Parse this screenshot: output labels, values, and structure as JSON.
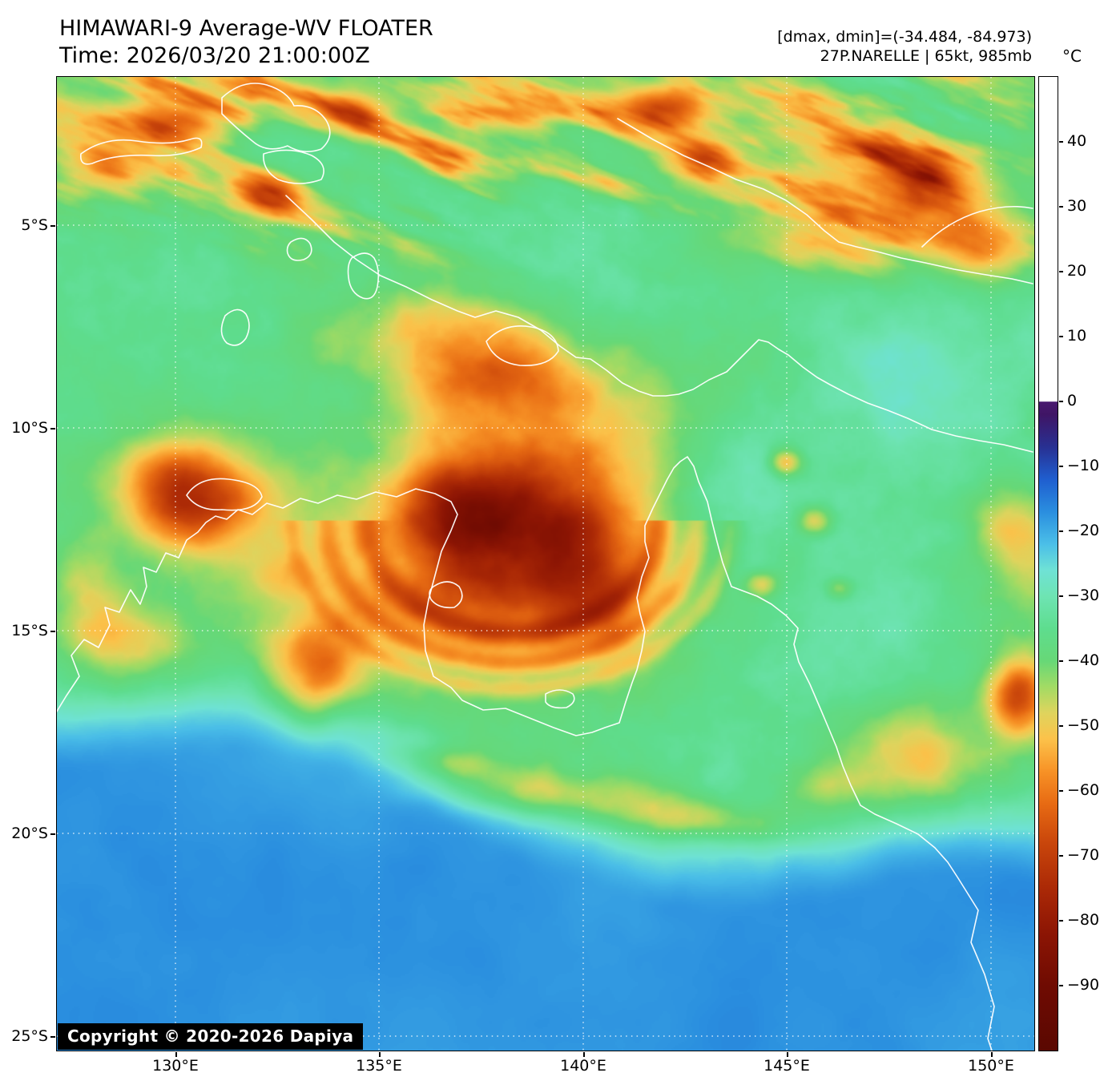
{
  "header": {
    "title": "HIMAWARI-9 Average-WV FLOATER",
    "time_label": "Time: 2026/03/20 21:00:00Z",
    "range_annotation": "[dmax, dmin]=(-34.484, -84.973)",
    "storm_annotation": "27P.NARELLE | 65kt, 985mb"
  },
  "map": {
    "copyright": "Copyright © 2020-2026 Dapiya",
    "lat_ticks": [
      "5°S",
      "10°S",
      "15°S",
      "20°S",
      "25°S"
    ],
    "lon_ticks": [
      "130°E",
      "135°E",
      "140°E",
      "145°E",
      "150°E"
    ]
  },
  "colorbar": {
    "unit": "°C",
    "ticks": [
      "40",
      "30",
      "20",
      "10",
      "0",
      "−10",
      "−20",
      "−30",
      "−40",
      "−50",
      "−60",
      "−70",
      "−80",
      "−90"
    ],
    "range": [
      50,
      -100
    ],
    "colormap": [
      {
        "t": -100,
        "c": "#5a0801"
      },
      {
        "t": -90,
        "c": "#6f0b02"
      },
      {
        "t": -82,
        "c": "#8c1504"
      },
      {
        "t": -75,
        "c": "#ab2906"
      },
      {
        "t": -68,
        "c": "#c9460b"
      },
      {
        "t": -62,
        "c": "#e76a13"
      },
      {
        "t": -57,
        "c": "#f79226"
      },
      {
        "t": -52,
        "c": "#fcc24a"
      },
      {
        "t": -48,
        "c": "#dfd45d"
      },
      {
        "t": -44,
        "c": "#a3db64"
      },
      {
        "t": -40,
        "c": "#67d877"
      },
      {
        "t": -35,
        "c": "#5edd8e"
      },
      {
        "t": -30,
        "c": "#6ee4b3"
      },
      {
        "t": -26,
        "c": "#6fe2d5"
      },
      {
        "t": -22,
        "c": "#4bbfe8"
      },
      {
        "t": -17,
        "c": "#2a8edf"
      },
      {
        "t": -12,
        "c": "#1f5ecf"
      },
      {
        "t": -7,
        "c": "#283092"
      },
      {
        "t": -2,
        "c": "#3f1565"
      },
      {
        "t": -0.05,
        "c": "#4a1a70"
      },
      {
        "t": 0,
        "c": "#ffffff"
      },
      {
        "t": 50,
        "c": "#ffffff"
      }
    ]
  }
}
